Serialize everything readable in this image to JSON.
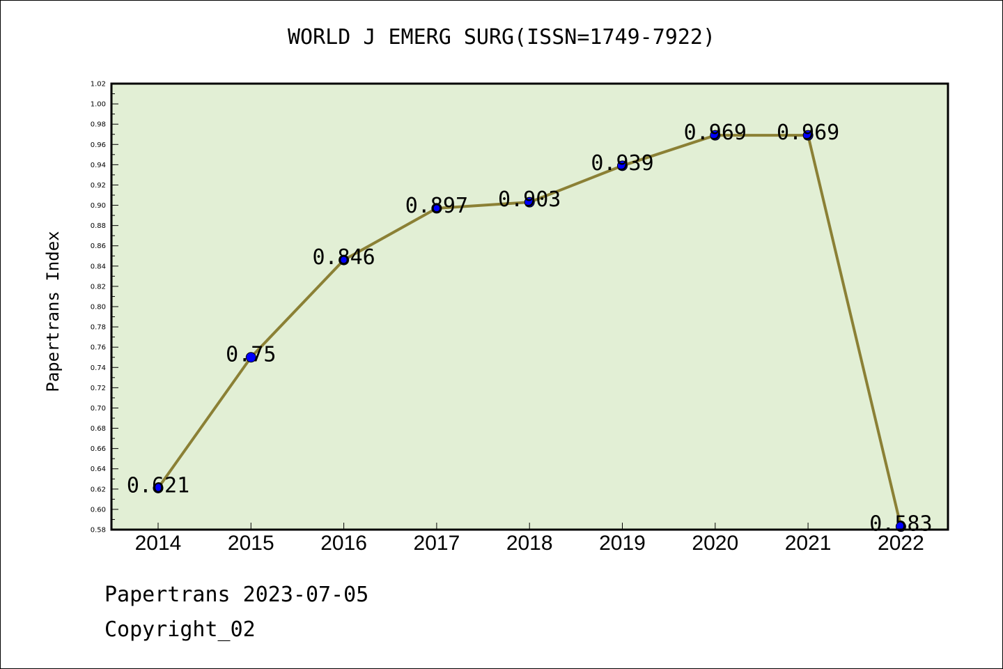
{
  "chart_data": {
    "type": "line",
    "title": "WORLD J EMERG SURG(ISSN=1749-7922)",
    "ylabel": "Papertrans Index",
    "xlabel": "",
    "x": [
      "2014",
      "2015",
      "2016",
      "2017",
      "2018",
      "2019",
      "2020",
      "2021",
      "2022"
    ],
    "series": [
      {
        "values": [
          0.621,
          0.75,
          0.846,
          0.897,
          0.903,
          0.939,
          0.969,
          0.969,
          0.583
        ],
        "labels": [
          "0.621",
          "0.75",
          "0.846",
          "0.897",
          "0.903",
          "0.939",
          "0.969",
          "0.969",
          "0.583"
        ]
      }
    ],
    "ylim": [
      0.58,
      1.02
    ],
    "ytick_step": 0.02,
    "grid": false,
    "line_color": "#8b8035",
    "marker_color": "#0000ff",
    "plot_background": "#e2efd5"
  },
  "footer": {
    "date_line": "Papertrans 2023-07-05",
    "copyright_line": "Copyright_02"
  }
}
